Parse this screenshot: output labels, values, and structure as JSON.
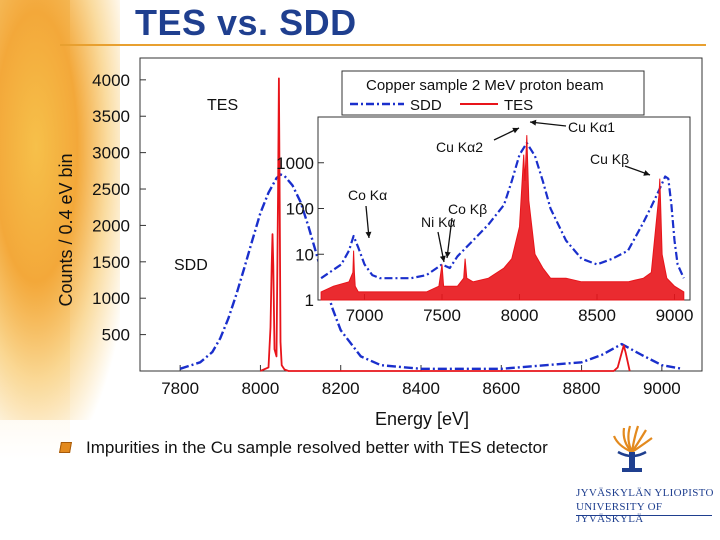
{
  "slide": {
    "title": "TES vs. SDD",
    "caption": "Impurities in the Cu sample resolved better with TES detector",
    "university": [
      "JYVÄSKYLÄN YLIOPISTO",
      "UNIVERSITY OF JYVÄSKYLÄ"
    ],
    "colors": {
      "title": "#1f3f8f",
      "accent": "#e8a030",
      "sdd": "#1a2fcc",
      "tes": "#e8141a"
    }
  },
  "chart_data": [
    {
      "type": "line",
      "xlabel": "Energy [eV]",
      "ylabel": "Counts / 0.4 eV bin",
      "xlim": [
        7700,
        9100
      ],
      "ylim": [
        0,
        4300
      ],
      "xticks": [
        7800,
        8000,
        8200,
        8400,
        8600,
        8800,
        9000
      ],
      "yticks": [
        500,
        1000,
        1500,
        2000,
        2500,
        3000,
        3500,
        4000
      ],
      "annotations": [
        "TES",
        "SDD"
      ],
      "series": [
        {
          "name": "SDD",
          "style": "dash-dot",
          "color": "#1a2fcc",
          "x": [
            7800,
            7850,
            7880,
            7900,
            7920,
            7940,
            7960,
            7980,
            8000,
            8020,
            8040,
            8050,
            8060,
            8080,
            8100,
            8120,
            8140,
            8160,
            8180,
            8200,
            8250,
            8300,
            8400,
            8600,
            8800,
            8850,
            8900,
            8950,
            9000,
            9050
          ],
          "y": [
            30,
            120,
            260,
            450,
            720,
            1050,
            1420,
            1800,
            2170,
            2450,
            2650,
            2700,
            2680,
            2550,
            2320,
            1980,
            1600,
            1200,
            850,
            560,
            200,
            80,
            30,
            30,
            120,
            220,
            370,
            220,
            80,
            30
          ]
        },
        {
          "name": "TES",
          "style": "solid",
          "color": "#e8141a",
          "x": [
            8000,
            8020,
            8025,
            8028,
            8030,
            8032,
            8035,
            8040,
            8044,
            8046,
            8048,
            8050,
            8053,
            8060,
            8070,
            8880,
            8890,
            8900,
            8905,
            8910,
            8920
          ],
          "y": [
            0,
            50,
            600,
            1450,
            1880,
            1450,
            300,
            200,
            2500,
            4020,
            2300,
            400,
            80,
            20,
            0,
            0,
            50,
            250,
            350,
            250,
            0
          ]
        }
      ]
    },
    {
      "type": "line",
      "title": "Copper sample 2 MeV proton beam",
      "xlim": [
        6700,
        9100
      ],
      "ylog": true,
      "ylim": [
        1,
        10000
      ],
      "xticks": [
        7000,
        7500,
        8000,
        8500,
        9000
      ],
      "yticks": [
        1,
        10,
        100,
        1000
      ],
      "legend": {
        "placement": "top",
        "entries": [
          "SDD",
          "TES"
        ]
      },
      "annotations": [
        "Cu Kα1",
        "Cu Kα2",
        "Cu Kβ",
        "Co Kα",
        "Co Kβ",
        "Ni Kα"
      ],
      "series": [
        {
          "name": "SDD",
          "style": "dash-dot",
          "color": "#1a2fcc",
          "x": [
            6720,
            6850,
            6900,
            6930,
            6960,
            7000,
            7050,
            7100,
            7200,
            7300,
            7400,
            7500,
            7550,
            7600,
            7700,
            7800,
            7900,
            7950,
            8000,
            8047,
            8100,
            8150,
            8200,
            8300,
            8400,
            8500,
            8600,
            8700,
            8800,
            8850,
            8900,
            8940,
            8960,
            8980,
            9000,
            9020,
            9060
          ],
          "y": [
            3,
            6,
            12,
            25,
            14,
            6,
            3.5,
            3,
            3,
            3,
            3.5,
            6,
            5,
            9,
            20,
            45,
            120,
            400,
            1500,
            2700,
            1400,
            400,
            100,
            20,
            8,
            6,
            8,
            12,
            50,
            110,
            250,
            500,
            450,
            120,
            20,
            6,
            3
          ]
        },
        {
          "name": "TES",
          "style": "solid",
          "color": "#e8141a",
          "x": [
            6720,
            6800,
            6900,
            6925,
            6930,
            6935,
            6940,
            6960,
            7000,
            7100,
            7200,
            7300,
            7400,
            7480,
            7500,
            7510,
            7600,
            7640,
            7649,
            7660,
            7700,
            7800,
            7900,
            7950,
            8000,
            8027,
            8035,
            8047,
            8060,
            8100,
            8150,
            8200,
            8300,
            8400,
            8500,
            8600,
            8700,
            8800,
            8850,
            8900,
            8905,
            8910,
            8920,
            8950,
            9000,
            9060
          ],
          "y": [
            1.5,
            2,
            2.5,
            4,
            12,
            4,
            2,
            1.5,
            1.5,
            1.5,
            1.5,
            1.5,
            1.5,
            2,
            6,
            2,
            2,
            3,
            8,
            3,
            2.5,
            3,
            5,
            8,
            40,
            1500,
            400,
            4000,
            150,
            10,
            5,
            3,
            3,
            2.5,
            2.5,
            2.5,
            2.5,
            3,
            4,
            200,
            450,
            150,
            10,
            3,
            2,
            1.5
          ]
        }
      ]
    }
  ]
}
